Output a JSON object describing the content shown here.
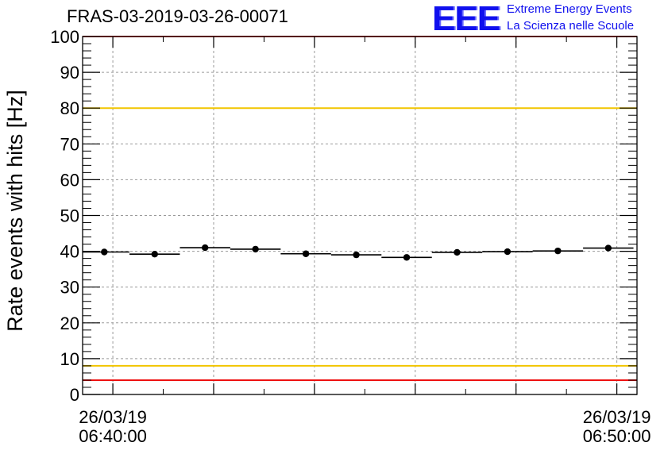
{
  "title": "FRAS-03-2019-03-26-00071",
  "logo": {
    "mark": "EEE",
    "line1": "Extreme Energy Events",
    "line2": "La Scienza nelle Scuole"
  },
  "chart_data": {
    "type": "scatter",
    "ylabel": "Rate events with hits [Hz]",
    "xlabel": "",
    "ylim": [
      0,
      100
    ],
    "yticks": [
      0,
      10,
      20,
      30,
      40,
      50,
      60,
      70,
      80,
      90,
      100
    ],
    "xlim_minutes": [
      -0.6,
      10.4
    ],
    "xticks": [
      {
        "minute": 0,
        "date": "26/03/19",
        "time": "06:40:00"
      },
      {
        "minute": 10,
        "date": "26/03/19",
        "time": "06:50:00"
      }
    ],
    "grid": true,
    "series": [
      {
        "x_minutes": [
          -0.17,
          0.83,
          1.83,
          2.83,
          3.83,
          4.83,
          5.83,
          6.83,
          7.83,
          8.83,
          9.83
        ],
        "values": [
          39.8,
          39.2,
          41.0,
          40.6,
          39.3,
          39.0,
          38.3,
          39.7,
          39.9,
          40.1,
          40.9
        ],
        "bin_width_minutes": 1.0
      }
    ],
    "reference_lines": [
      {
        "y": 100,
        "color": "#ee1111"
      },
      {
        "y": 80,
        "color": "#f2c500"
      },
      {
        "y": 8,
        "color": "#f2c500"
      },
      {
        "y": 4,
        "color": "#ee1111"
      }
    ]
  }
}
